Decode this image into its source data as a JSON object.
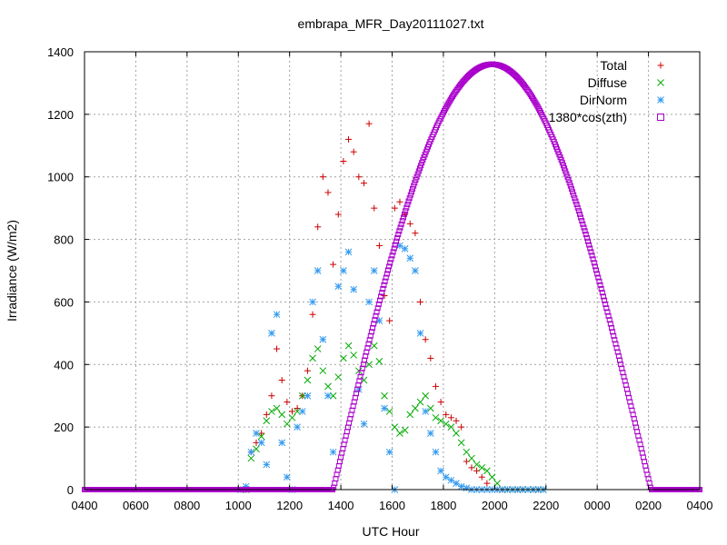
{
  "chart_data": {
    "type": "scatter",
    "title": "embrapa_MFR_Day20111027.txt",
    "xlabel": "UTC Hour",
    "ylabel": "Irradiance (W/m2)",
    "xlim": [
      0,
      24
    ],
    "ylim": [
      0,
      1400
    ],
    "x_tick_labels": [
      "0400",
      "0600",
      "0800",
      "1000",
      "1200",
      "1400",
      "1600",
      "1800",
      "2000",
      "2200",
      "0000",
      "0200",
      "0400"
    ],
    "y_tick_labels": [
      "0",
      "200",
      "400",
      "600",
      "800",
      "1000",
      "1200",
      "1400"
    ],
    "y_tick_values": [
      0,
      200,
      400,
      600,
      800,
      1000,
      1200,
      1400
    ],
    "grid": true,
    "legend_position": "top-right",
    "series": [
      {
        "name": "Total",
        "marker": "plus",
        "color": "#cc0000",
        "x": [
          6.1,
          6.3,
          6.5,
          6.7,
          6.9,
          7.1,
          7.3,
          7.5,
          7.7,
          7.9,
          8.1,
          8.3,
          8.5,
          8.7,
          8.9,
          9.1,
          9.3,
          9.5,
          9.7,
          9.9,
          10.1,
          10.3,
          10.5,
          10.7,
          10.9,
          11.1,
          11.3,
          11.5,
          11.7,
          11.9,
          12.1,
          12.3,
          12.5,
          12.7,
          12.9,
          13.1,
          13.3,
          13.5,
          13.7,
          13.9,
          14.1,
          14.3,
          14.5,
          14.7,
          14.9,
          15.1,
          15.3,
          15.5,
          15.7,
          15.9,
          16.1,
          16.3,
          16.5,
          16.7,
          16.9,
          17.1,
          17.3,
          17.5,
          17.7,
          17.9
        ],
        "y": [
          0,
          0,
          120,
          150,
          180,
          240,
          300,
          450,
          350,
          280,
          250,
          260,
          300,
          380,
          560,
          840,
          1000,
          950,
          720,
          880,
          1050,
          1120,
          1080,
          1000,
          980,
          1170,
          900,
          780,
          620,
          540,
          900,
          920,
          880,
          850,
          820,
          600,
          480,
          420,
          330,
          280,
          240,
          230,
          220,
          200,
          90,
          70,
          60,
          40,
          20,
          0,
          0,
          0,
          0,
          0,
          0,
          0,
          0,
          0,
          0,
          0
        ]
      },
      {
        "name": "Diffuse",
        "marker": "cross",
        "color": "#00aa00",
        "x": [
          6.1,
          6.3,
          6.5,
          6.7,
          6.9,
          7.1,
          7.3,
          7.5,
          7.7,
          7.9,
          8.1,
          8.3,
          8.5,
          8.7,
          8.9,
          9.1,
          9.3,
          9.5,
          9.7,
          9.9,
          10.1,
          10.3,
          10.5,
          10.7,
          10.9,
          11.1,
          11.3,
          11.5,
          11.7,
          11.9,
          12.1,
          12.3,
          12.5,
          12.7,
          12.9,
          13.1,
          13.3,
          13.5,
          13.7,
          13.9,
          14.1,
          14.3,
          14.5,
          14.7,
          14.9,
          15.1,
          15.3,
          15.5,
          15.7,
          15.9,
          16.1,
          16.3,
          16.5,
          16.7,
          16.9,
          17.1,
          17.3,
          17.5,
          17.7,
          17.9
        ],
        "y": [
          0,
          0,
          100,
          130,
          170,
          220,
          250,
          260,
          240,
          210,
          230,
          250,
          300,
          350,
          420,
          450,
          380,
          330,
          300,
          360,
          420,
          460,
          430,
          380,
          350,
          400,
          460,
          410,
          300,
          250,
          200,
          180,
          190,
          240,
          260,
          280,
          300,
          260,
          230,
          220,
          210,
          200,
          180,
          150,
          120,
          100,
          80,
          70,
          60,
          40,
          20,
          0,
          0,
          0,
          0,
          0,
          0,
          0,
          0,
          0
        ]
      },
      {
        "name": "DirNorm",
        "marker": "star",
        "color": "#3399ee",
        "x": [
          6.1,
          6.3,
          6.5,
          6.7,
          6.9,
          7.1,
          7.3,
          7.5,
          7.7,
          7.9,
          8.1,
          8.3,
          8.5,
          8.7,
          8.9,
          9.1,
          9.3,
          9.5,
          9.7,
          9.9,
          10.1,
          10.3,
          10.5,
          10.7,
          10.9,
          11.1,
          11.3,
          11.5,
          11.7,
          11.9,
          12.1,
          12.3,
          12.5,
          12.7,
          12.9,
          13.1,
          13.3,
          13.5,
          13.7,
          13.9,
          14.1,
          14.3,
          14.5,
          14.7,
          14.9,
          15.1,
          15.3,
          15.5,
          15.7,
          15.9,
          16.1,
          16.3,
          16.5,
          16.7,
          16.9,
          17.1,
          17.3,
          17.5,
          17.7,
          17.9
        ],
        "y": [
          0,
          10,
          120,
          180,
          150,
          80,
          500,
          560,
          150,
          40,
          0,
          200,
          250,
          300,
          600,
          700,
          480,
          300,
          120,
          650,
          700,
          760,
          640,
          320,
          210,
          600,
          700,
          540,
          260,
          120,
          0,
          780,
          770,
          740,
          700,
          500,
          250,
          180,
          120,
          60,
          40,
          30,
          20,
          10,
          5,
          0,
          0,
          0,
          0,
          0,
          0,
          0,
          0,
          0,
          0,
          0,
          0,
          0,
          0,
          0
        ]
      },
      {
        "name": "1380*cos(zth)",
        "marker": "square",
        "color": "#aa00cc",
        "curve": {
          "sunrise": 9.7,
          "sunset": 22.1,
          "peak": 1360,
          "peak_x": 15.7
        }
      }
    ]
  }
}
